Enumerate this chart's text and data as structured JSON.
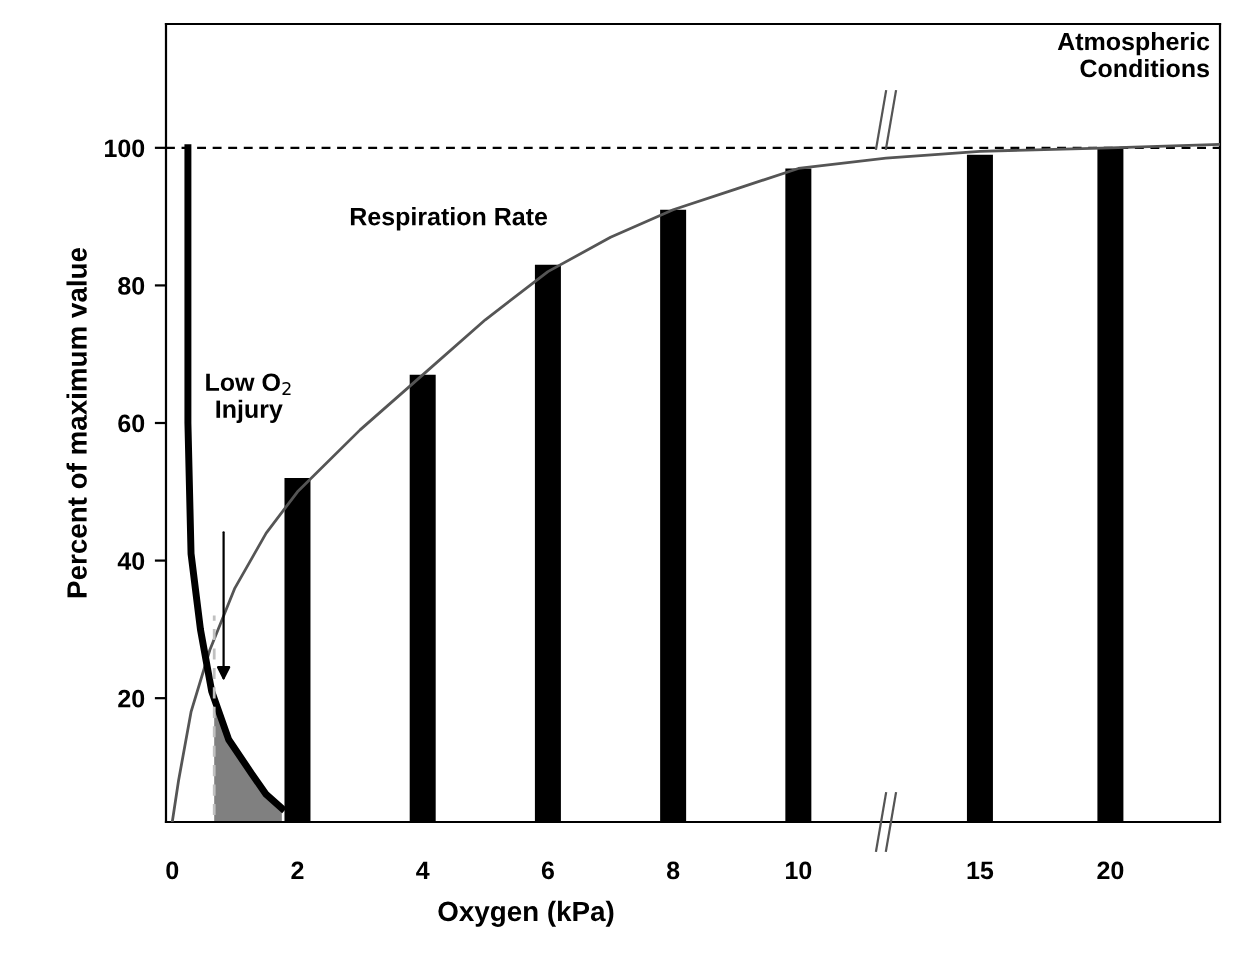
{
  "chart_data": [
    {
      "type": "bar",
      "xlabel": "Oxygen (kPa)",
      "ylabel": "Percent of maximum value",
      "xlim": [
        -0.1,
        11.4
      ],
      "ylim": [
        2,
        118
      ],
      "xticks": [
        0,
        2,
        4,
        6,
        8,
        10
      ],
      "yticks": [
        20,
        40,
        60,
        80,
        100
      ],
      "grid": false,
      "legend": false,
      "series": [
        {
          "type": "area",
          "color": "#808080",
          "x": [
            0.67,
            0.9,
            1.27,
            1.5,
            1.75
          ],
          "values": [
            21,
            14,
            9,
            6,
            4
          ]
        },
        {
          "color": "#000000",
          "x": [
            2,
            4,
            6,
            8,
            10
          ],
          "values": [
            52,
            67,
            83,
            91,
            97
          ]
        },
        {
          "type": "line",
          "name": "Respiration Rate",
          "color": "#555555",
          "line_style": "solid",
          "x": [
            0,
            0.1,
            0.3,
            0.6,
            1,
            1.5,
            2,
            3,
            4,
            5,
            6,
            7,
            8,
            9,
            10,
            11.4
          ],
          "values": [
            2,
            8,
            18,
            27,
            36,
            44,
            50,
            59,
            67,
            75,
            82,
            87,
            91,
            94,
            97,
            98.5
          ]
        },
        {
          "type": "line",
          "color": "#000000",
          "line_style": "solid",
          "x": [
            0.25,
            0.25,
            0.3,
            0.45,
            0.63,
            0.9,
            1.27,
            1.5,
            1.75
          ],
          "values": [
            100,
            60,
            41,
            30,
            21,
            14,
            9,
            6,
            4
          ]
        },
        {
          "type": "line",
          "color": "#c0c0c0",
          "line_style": "dashed",
          "x": [
            0.67,
            0.67
          ],
          "values": [
            3,
            32
          ]
        }
      ],
      "ref_lines": [
        {
          "axis": "y",
          "value": 100,
          "color": "#000000",
          "line_style": "dashed"
        }
      ],
      "annotations": [
        "Low O$_{2}$\nInjury"
      ]
    },
    {
      "type": "bar",
      "xlim": [
        11.4,
        24.2
      ],
      "ylim": [
        2,
        118
      ],
      "xticks": [
        15,
        20
      ],
      "tick_labels": "x",
      "grid": false,
      "legend": false,
      "series": [
        {
          "color": "#000000",
          "x": [
            15,
            20
          ],
          "values": [
            99,
            100
          ]
        },
        {
          "type": "line",
          "color": "#555555",
          "line_style": "solid",
          "x": [
            11.4,
            15,
            20,
            24.2
          ],
          "values": [
            98.5,
            99.5,
            100,
            100.5
          ]
        }
      ],
      "ref_lines": [
        {
          "axis": "y",
          "value": 100,
          "color": "#000000",
          "line_style": "dashed"
        }
      ],
      "annotations": [
        "Atmospheric\nConditions"
      ]
    }
  ]
}
